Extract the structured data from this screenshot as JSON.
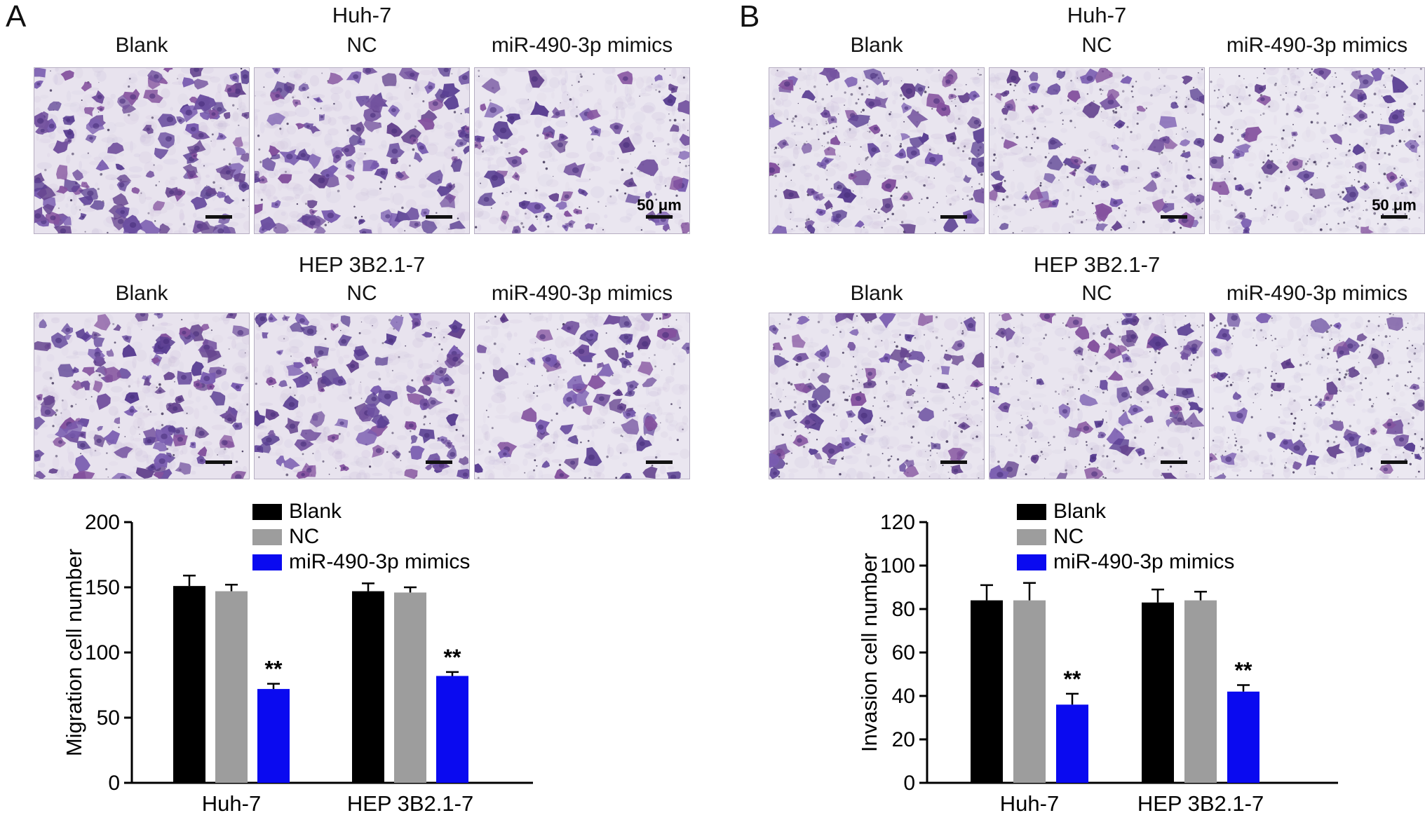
{
  "figure": {
    "panels": [
      {
        "label": "A",
        "groups": [
          {
            "title": "Huh-7",
            "images": [
              {
                "label": "Blank",
                "density": 120,
                "seed": 11,
                "bg": "#e8e3ee",
                "speckles": 70
              },
              {
                "label": "NC",
                "density": 108,
                "seed": 12,
                "bg": "#e8e3ee",
                "speckles": 70
              },
              {
                "label": "miR-490-3p mimics",
                "density": 62,
                "seed": 13,
                "bg": "#eae6f0",
                "speckles": 110,
                "scale_label": "50 μm"
              }
            ]
          },
          {
            "title": "HEP 3B2.1-7",
            "images": [
              {
                "label": "Blank",
                "density": 122,
                "seed": 14,
                "bg": "#e8e3ee",
                "speckles": 70
              },
              {
                "label": "NC",
                "density": 102,
                "seed": 15,
                "bg": "#e8e3ee",
                "speckles": 80
              },
              {
                "label": "miR-490-3p mimics",
                "density": 66,
                "seed": 16,
                "bg": "#eae6f0",
                "speckles": 100
              }
            ]
          }
        ]
      },
      {
        "label": "B",
        "groups": [
          {
            "title": "Huh-7",
            "images": [
              {
                "label": "Blank",
                "density": 72,
                "seed": 21,
                "bg": "#e9e5ef",
                "speckles": 220
              },
              {
                "label": "NC",
                "density": 68,
                "seed": 22,
                "bg": "#e9e5ef",
                "speckles": 220
              },
              {
                "label": "miR-490-3p mimics",
                "density": 42,
                "seed": 23,
                "bg": "#ebe8f1",
                "speckles": 260,
                "scale_label": "50 μm"
              }
            ]
          },
          {
            "title": "HEP 3B2.1-7",
            "images": [
              {
                "label": "Blank",
                "density": 66,
                "seed": 24,
                "bg": "#e9e5ef",
                "speckles": 220
              },
              {
                "label": "NC",
                "density": 62,
                "seed": 25,
                "bg": "#e9e5ef",
                "speckles": 220
              },
              {
                "label": "miR-490-3p mimics",
                "density": 46,
                "seed": 26,
                "bg": "#ebe8f1",
                "speckles": 240
              }
            ]
          }
        ]
      }
    ]
  },
  "chart_data": [
    {
      "type": "bar",
      "title": "",
      "xlabel": "",
      "ylabel": "Migration cell number",
      "ylim": [
        0,
        200
      ],
      "yticks": [
        0,
        50,
        100,
        150,
        200
      ],
      "categories": [
        "Huh-7",
        "HEP 3B2.1-7"
      ],
      "grid": false,
      "legend_position": "top-center",
      "series": [
        {
          "name": "Blank",
          "color": "#000000",
          "values": [
            151,
            147
          ],
          "errors": [
            8,
            6
          ]
        },
        {
          "name": "NC",
          "color": "#9d9d9d",
          "values": [
            147,
            146
          ],
          "errors": [
            5,
            4
          ]
        },
        {
          "name": "miR-490-3p mimics",
          "color": "#0a0af0",
          "values": [
            72,
            82
          ],
          "errors": [
            4,
            3
          ],
          "sig": [
            "**",
            "**"
          ]
        }
      ]
    },
    {
      "type": "bar",
      "title": "",
      "xlabel": "",
      "ylabel": "Invasion cell number",
      "ylim": [
        0,
        120
      ],
      "yticks": [
        0,
        20,
        40,
        60,
        80,
        100,
        120
      ],
      "categories": [
        "Huh-7",
        "HEP 3B2.1-7"
      ],
      "grid": false,
      "legend_position": "top-center",
      "series": [
        {
          "name": "Blank",
          "color": "#000000",
          "values": [
            84,
            83
          ],
          "errors": [
            7,
            6
          ]
        },
        {
          "name": "NC",
          "color": "#9d9d9d",
          "values": [
            84,
            84
          ],
          "errors": [
            8,
            4
          ]
        },
        {
          "name": "miR-490-3p mimics",
          "color": "#0a0af0",
          "values": [
            36,
            42
          ],
          "errors": [
            5,
            3
          ],
          "sig": [
            "**",
            "**"
          ]
        }
      ]
    }
  ]
}
